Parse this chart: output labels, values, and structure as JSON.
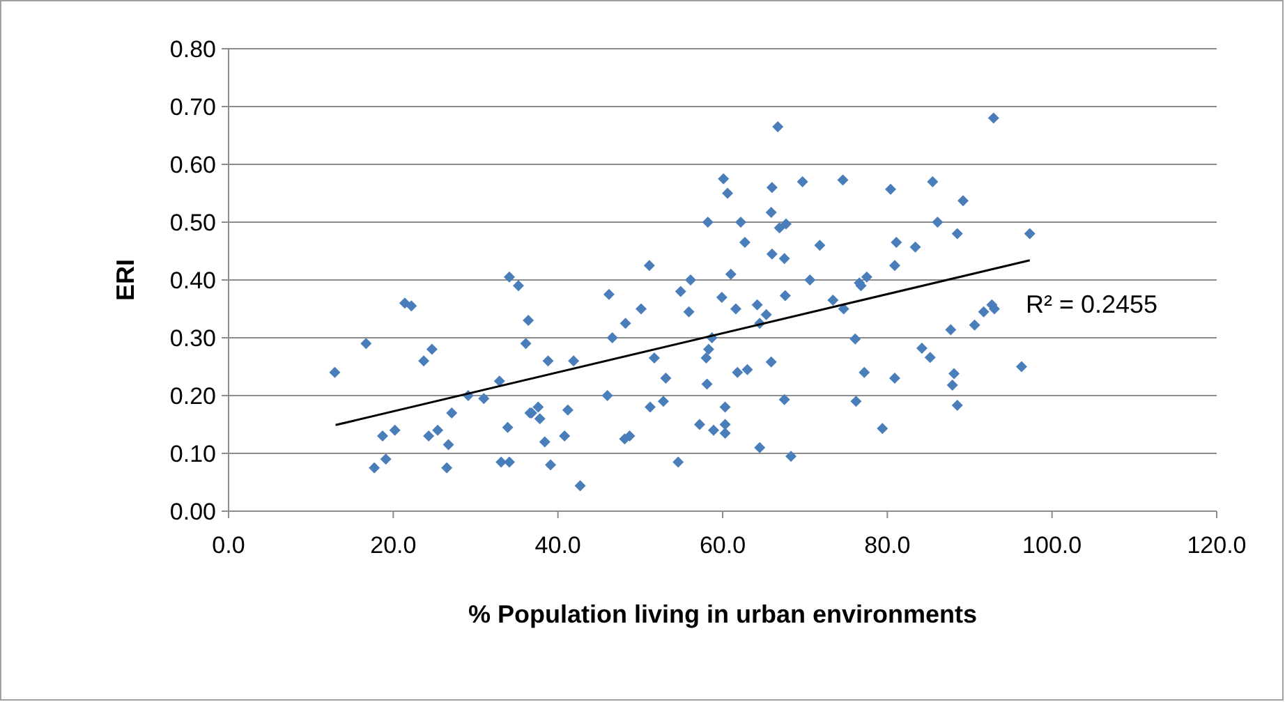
{
  "chart_data": {
    "type": "scatter",
    "xlabel": "% Population living in urban environments",
    "ylabel": "ERI",
    "xlim": [
      0,
      120
    ],
    "ylim": [
      0,
      0.8
    ],
    "xticks": [
      {
        "value": 0,
        "label": "0.0"
      },
      {
        "value": 20,
        "label": "20.0"
      },
      {
        "value": 40,
        "label": "40.0"
      },
      {
        "value": 60,
        "label": "60.0"
      },
      {
        "value": 80,
        "label": "80.0"
      },
      {
        "value": 100,
        "label": "100.0"
      },
      {
        "value": 120,
        "label": "120.0"
      }
    ],
    "yticks": [
      {
        "value": 0,
        "label": "0.00"
      },
      {
        "value": 0.1,
        "label": "0.10"
      },
      {
        "value": 0.2,
        "label": "0.20"
      },
      {
        "value": 0.3,
        "label": "0.30"
      },
      {
        "value": 0.4,
        "label": "0.40"
      },
      {
        "value": 0.5,
        "label": "0.50"
      },
      {
        "value": 0.6,
        "label": "0.60"
      },
      {
        "value": 0.7,
        "label": "0.70"
      },
      {
        "value": 0.8,
        "label": "0.80"
      }
    ],
    "grid": "y",
    "series": [
      {
        "marker": "diamond",
        "color": "#4a7ebb",
        "x": [
          12.9,
          16.7,
          17.7,
          19.1,
          18.7,
          20.2,
          21.4,
          22.2,
          23.7,
          24.7,
          24.3,
          25.4,
          26.7,
          26.5,
          27.1,
          29.1,
          31.0,
          32.9,
          33.9,
          33.1,
          34.1,
          34.1,
          35.2,
          36.4,
          36.1,
          36.6,
          38.8,
          41.9,
          36.8,
          37.6,
          37.8,
          38.4,
          39.1,
          41.2,
          40.8,
          42.7,
          46.2,
          46.6,
          46.0,
          48.2,
          48.7,
          48.1,
          50.1,
          51.1,
          51.7,
          51.2,
          52.8,
          53.1,
          54.6,
          54.9,
          55.9,
          56.1,
          57.2,
          58.2,
          58.0,
          58.3,
          58.1,
          58.7,
          58.9,
          59.9,
          60.1,
          60.6,
          61.0,
          60.3,
          60.3,
          60.3,
          61.6,
          62.2,
          62.7,
          61.8,
          63.0,
          64.2,
          64.5,
          66.7,
          66.0,
          69.7,
          74.6,
          80.4,
          85.5,
          92.9,
          65.9,
          66.9,
          67.7,
          71.8,
          66.0,
          67.5,
          70.6,
          65.3,
          64.5,
          67.6,
          73.4,
          74.7,
          76.6,
          77.5,
          76.8,
          80.9,
          81.1,
          83.4,
          86.1,
          88.5,
          89.2,
          76.1,
          65.9,
          77.2,
          84.2,
          85.2,
          80.9,
          87.7,
          88.1,
          87.9,
          88.5,
          90.6,
          91.7,
          92.7,
          93.0,
          67.5,
          76.2,
          79.4,
          68.3,
          97.3,
          96.3
        ],
        "values": [
          0.24,
          0.29,
          0.075,
          0.09,
          0.13,
          0.14,
          0.36,
          0.355,
          0.26,
          0.28,
          0.13,
          0.14,
          0.115,
          0.075,
          0.17,
          0.2,
          0.195,
          0.225,
          0.145,
          0.085,
          0.085,
          0.405,
          0.39,
          0.33,
          0.29,
          0.17,
          0.26,
          0.26,
          0.17,
          0.18,
          0.16,
          0.12,
          0.08,
          0.175,
          0.13,
          0.044,
          0.375,
          0.3,
          0.2,
          0.325,
          0.13,
          0.125,
          0.35,
          0.425,
          0.265,
          0.18,
          0.19,
          0.23,
          0.085,
          0.38,
          0.345,
          0.4,
          0.15,
          0.5,
          0.265,
          0.28,
          0.22,
          0.3,
          0.14,
          0.37,
          0.575,
          0.55,
          0.41,
          0.18,
          0.15,
          0.135,
          0.35,
          0.5,
          0.465,
          0.24,
          0.245,
          0.357,
          0.11,
          0.665,
          0.56,
          0.57,
          0.573,
          0.557,
          0.57,
          0.68,
          0.517,
          0.49,
          0.497,
          0.46,
          0.445,
          0.437,
          0.4,
          0.34,
          0.325,
          0.373,
          0.365,
          0.35,
          0.395,
          0.405,
          0.39,
          0.425,
          0.465,
          0.457,
          0.5,
          0.48,
          0.537,
          0.298,
          0.258,
          0.24,
          0.282,
          0.266,
          0.23,
          0.314,
          0.238,
          0.218,
          0.183,
          0.322,
          0.345,
          0.357,
          0.35,
          0.193,
          0.19,
          0.143,
          0.095,
          0.48,
          0.25
        ]
      },
      {
        "type": "line",
        "color": "#000000",
        "x": [
          13.0,
          97.3
        ],
        "values": [
          0.149,
          0.434
        ]
      }
    ],
    "annotations": [
      "R² = 0.2455"
    ]
  }
}
